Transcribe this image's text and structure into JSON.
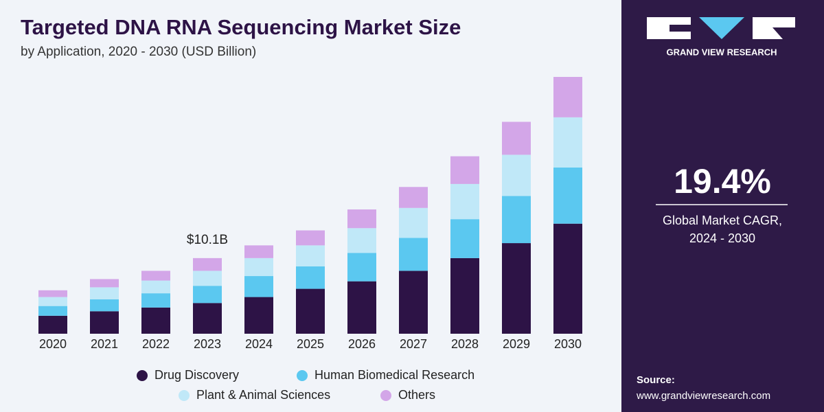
{
  "chart_data": {
    "type": "stacked_bar",
    "title": "Targeted DNA RNA Sequencing Market Size",
    "subtitle": "by Application, 2020 - 2030 (USD Billion)",
    "categories": [
      "2020",
      "2021",
      "2022",
      "2023",
      "2024",
      "2025",
      "2026",
      "2027",
      "2028",
      "2029",
      "2030"
    ],
    "series": [
      {
        "name": "Drug Discovery",
        "color": "#2d1346",
        "values": [
          2.4,
          3.0,
          3.5,
          4.1,
          4.9,
          6.0,
          7.0,
          8.4,
          10.1,
          12.1,
          14.7
        ]
      },
      {
        "name": "Human Biomedical Research",
        "color": "#5bc8f0",
        "values": [
          1.3,
          1.6,
          1.9,
          2.3,
          2.8,
          3.0,
          3.8,
          4.4,
          5.2,
          6.3,
          7.5
        ]
      },
      {
        "name": "Plant & Animal Sciences",
        "color": "#c0e8f8",
        "values": [
          1.2,
          1.6,
          1.7,
          2.0,
          2.4,
          2.8,
          3.3,
          4.0,
          4.7,
          5.5,
          6.7
        ]
      },
      {
        "name": "Others",
        "color": "#d3a6e8",
        "values": [
          0.9,
          1.1,
          1.3,
          1.7,
          1.7,
          2.0,
          2.5,
          2.8,
          3.7,
          4.4,
          5.4
        ]
      }
    ],
    "annotations": [
      {
        "category": "2023",
        "value": 10.1,
        "label": "$10.1B"
      }
    ]
  },
  "sidebar": {
    "brand": "GRAND VIEW RESEARCH",
    "cagr": "19.4%",
    "cagr_caption": [
      "Global Market CAGR,",
      "2024 - 2030"
    ],
    "source_title": "Source:",
    "source_url": "www.grandviewresearch.com"
  }
}
